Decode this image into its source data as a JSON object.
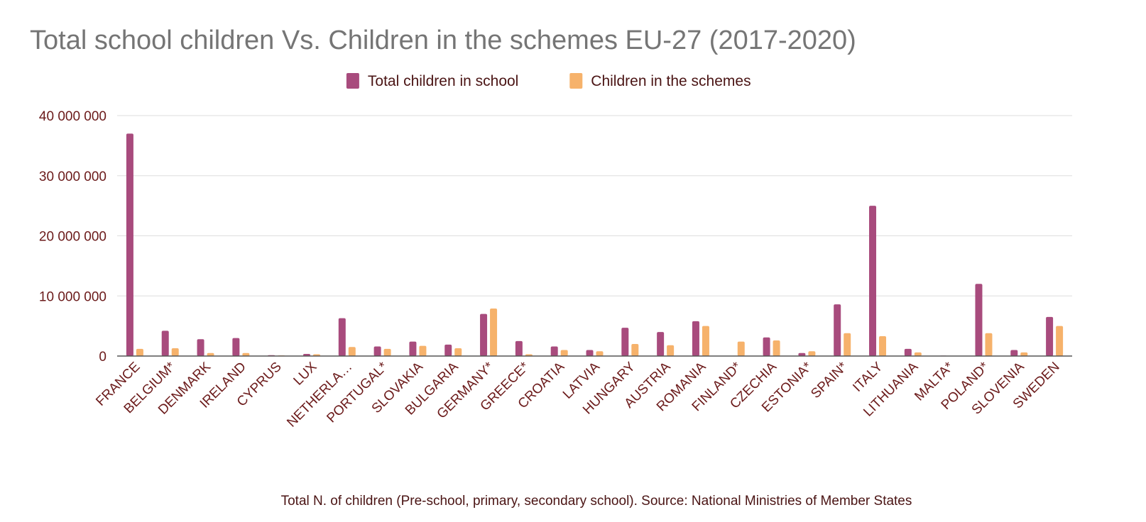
{
  "chart_data": {
    "type": "bar",
    "title": "Total school children Vs. Children in the schemes EU-27 (2017-2020)",
    "xlabel": "Total N. of children (Pre-school, primary, secondary school). Source: National Ministries of Member States",
    "ylabel": "",
    "ylim": [
      0,
      40000000
    ],
    "yticks": [
      0,
      10000000,
      20000000,
      30000000,
      40000000
    ],
    "ytick_labels": [
      "0",
      "10 000 000",
      "20 000 000",
      "30 000 000",
      "40 000 000"
    ],
    "grid": true,
    "legend_position": "top-center",
    "categories": [
      "FRANCE",
      "BELGIUM*",
      "DENMARK",
      "IRELAND",
      "CYPRUS",
      "LUX",
      "NETHERLA…",
      "PORTUGAL*",
      "SLOVAKIA",
      "BULGARIA",
      "GERMANY*",
      "GREECE*",
      "CROATIA",
      "LATVIA",
      "HUNGARY",
      "AUSTRIA",
      "ROMANIA",
      "FINLAND*",
      "CZECHIA",
      "ESTONIA*",
      "SPAIN*",
      "ITALY",
      "LITHUANIA",
      "MALTA*",
      "POLAND*",
      "SLOVENIA",
      "SWEDEN"
    ],
    "series": [
      {
        "name": "Total children in school",
        "color": "#a84b7d",
        "values": [
          37000000,
          4200000,
          2800000,
          3000000,
          150000,
          350000,
          6300000,
          1600000,
          2400000,
          1900000,
          7000000,
          2500000,
          1600000,
          1000000,
          4700000,
          4000000,
          5800000,
          0,
          3100000,
          500000,
          8600000,
          25000000,
          1200000,
          80000,
          12000000,
          1000000,
          6500000
        ]
      },
      {
        "name": "Children in the schemes",
        "color": "#f6b26b",
        "values": [
          1200000,
          1300000,
          500000,
          500000,
          100000,
          300000,
          1500000,
          1200000,
          1700000,
          1300000,
          7900000,
          300000,
          1000000,
          800000,
          2000000,
          1800000,
          5000000,
          2400000,
          2600000,
          800000,
          3800000,
          3300000,
          600000,
          50000,
          3800000,
          600000,
          5000000
        ]
      }
    ]
  }
}
